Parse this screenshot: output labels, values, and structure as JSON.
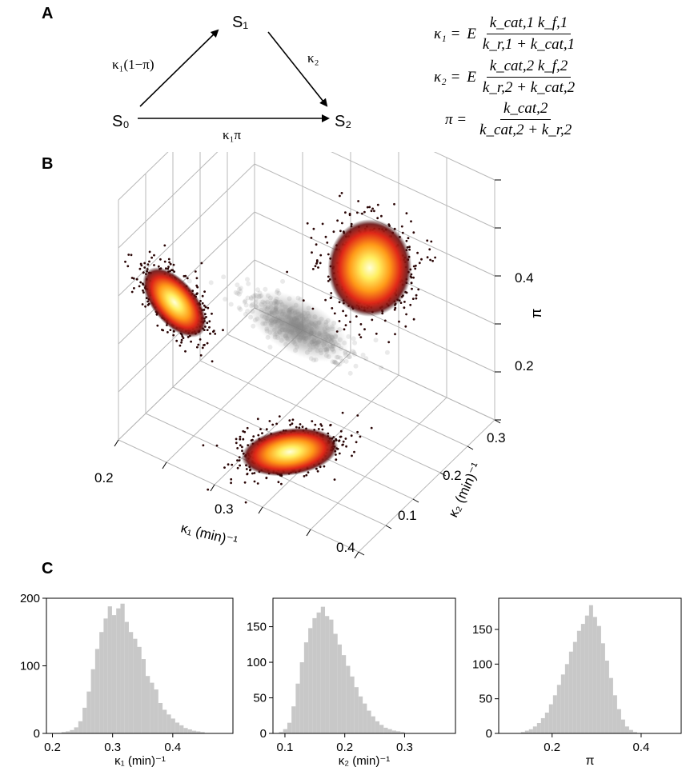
{
  "panels": {
    "a": "A",
    "b": "B",
    "c": "C"
  },
  "scheme": {
    "s0": "S₀",
    "s1": "S₁",
    "s2": "S₂",
    "edge_s0_s1": "κ₁(1−π)",
    "edge_s1_s2": "κ₂",
    "edge_s0_s2": "κ₁π"
  },
  "equations": [
    {
      "lhs": "κ₁ =",
      "coef": "E",
      "num": "k_cat,1 k_f,1",
      "den": "k_r,1 + k_cat,1"
    },
    {
      "lhs": "κ₂ =",
      "coef": "E",
      "num": "k_cat,2 k_f,2",
      "den": "k_r,2 + k_cat,2"
    },
    {
      "lhs": "π =",
      "coef": "",
      "num": "k_cat,2",
      "den": "k_cat,2 + k_r,2"
    }
  ],
  "chart_data": [
    {
      "type": "scatter",
      "title": "",
      "xlabel": "κ₁ (min)⁻¹",
      "ylabel": "κ₂ (min)⁻¹",
      "zlabel": "π",
      "x_ticks": [
        "0.2",
        "0.3",
        "0.4"
      ],
      "y_ticks": [
        "0.1",
        "0.2",
        "0.3"
      ],
      "z_ticks": [
        "0.2",
        "0.4"
      ],
      "xlim": [
        0.2,
        0.4
      ],
      "ylim": [
        0.08,
        0.32
      ],
      "zlim": [
        0.1,
        0.5
      ],
      "grid": true,
      "cloud_center": {
        "x": 0.3,
        "y": 0.17,
        "z": 0.33
      },
      "colors": {
        "cloud": "#808080",
        "density_low": "#3a0a0a",
        "density_mid": "#e03010",
        "density_high": "#ffffa0"
      }
    },
    {
      "type": "bar",
      "title": "",
      "xlabel": "κ₁ (min)⁻¹",
      "ylabel": "",
      "x_ticks": [
        "0.2",
        "0.3",
        "0.4"
      ],
      "y_ticks": [
        "0",
        "100",
        "200"
      ],
      "xlim": [
        0.19,
        0.5
      ],
      "ylim": [
        0,
        200
      ],
      "bin_start": 0.215,
      "bin_width": 0.007,
      "values": [
        2,
        3,
        5,
        9,
        18,
        38,
        62,
        95,
        125,
        150,
        170,
        188,
        175,
        185,
        192,
        165,
        150,
        140,
        128,
        110,
        85,
        75,
        65,
        45,
        35,
        28,
        22,
        16,
        12,
        8,
        6,
        4,
        3,
        2
      ],
      "color": "#c8c8c8"
    },
    {
      "type": "bar",
      "title": "",
      "xlabel": "κ₂ (min)⁻¹",
      "ylabel": "",
      "x_ticks": [
        "0.1",
        "0.2",
        "0.3"
      ],
      "y_ticks": [
        "0",
        "50",
        "100",
        "150"
      ],
      "xlim": [
        0.08,
        0.385
      ],
      "ylim": [
        0,
        190
      ],
      "bin_start": 0.09,
      "bin_width": 0.007,
      "values": [
        2,
        6,
        15,
        38,
        70,
        100,
        128,
        148,
        162,
        170,
        178,
        165,
        160,
        140,
        125,
        110,
        95,
        80,
        65,
        52,
        42,
        32,
        24,
        17,
        12,
        8,
        6,
        4,
        3,
        2
      ],
      "color": "#c8c8c8"
    },
    {
      "type": "bar",
      "title": "",
      "xlabel": "π",
      "ylabel": "",
      "x_ticks": [
        "0.2",
        "0.4"
      ],
      "y_ticks": [
        "0",
        "50",
        "100",
        "150"
      ],
      "xlim": [
        0.08,
        0.49
      ],
      "ylim": [
        0,
        195
      ],
      "bin_start": 0.13,
      "bin_width": 0.009,
      "values": [
        2,
        4,
        6,
        10,
        15,
        22,
        30,
        42,
        55,
        70,
        85,
        100,
        118,
        132,
        148,
        158,
        170,
        185,
        168,
        155,
        130,
        105,
        80,
        55,
        35,
        20,
        10,
        5,
        2
      ],
      "color": "#c8c8c8"
    }
  ]
}
